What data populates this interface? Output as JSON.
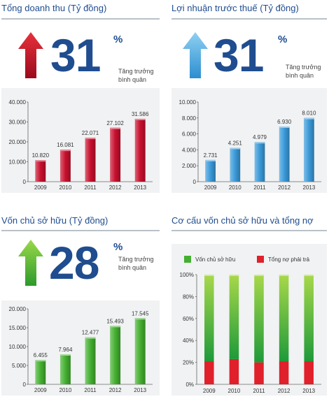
{
  "panels": [
    {
      "id": "revenue",
      "title": "Tổng doanh thu (Tỷ đồng)",
      "growth": "31",
      "pct_sign": "%",
      "growth_label": [
        "Tăng trưởng",
        "bình quân"
      ],
      "arrow_color": "#c8102e"
    },
    {
      "id": "profit",
      "title": "Lợi nhuận trước thuế (Tỷ đồng)",
      "growth": "31",
      "pct_sign": "%",
      "growth_label": [
        "Tăng trưởng",
        "bình quân"
      ],
      "arrow_color": "#4aa8e0"
    },
    {
      "id": "equity",
      "title": "Vốn chủ sở hữu (Tỷ đồng)",
      "growth": "28",
      "pct_sign": "%",
      "growth_label": [
        "Tăng trưởng",
        "bình quân"
      ],
      "arrow_color": "#5cb030"
    },
    {
      "id": "structure",
      "title": "Cơ cấu vốn chủ sở hữu và tổng nợ"
    }
  ],
  "chart_data": [
    {
      "id": "revenue",
      "type": "bar",
      "categories": [
        "2009",
        "2010",
        "2011",
        "2012",
        "2013"
      ],
      "values": [
        10820,
        16081,
        22071,
        27102,
        31586
      ],
      "value_labels": [
        "10.820",
        "16.081",
        "22.071",
        "27.102",
        "31.586"
      ],
      "ylim": [
        0,
        40000
      ],
      "yticks": [
        0,
        10000,
        20000,
        30000,
        40000
      ],
      "ytick_labels": [
        "0",
        "10.000",
        "20.000",
        "30.000",
        "40.000"
      ],
      "color": "#c8102e"
    },
    {
      "id": "profit",
      "type": "bar",
      "categories": [
        "2009",
        "2010",
        "2011",
        "2012",
        "2013"
      ],
      "values": [
        2731,
        4251,
        4979,
        6930,
        8010
      ],
      "value_labels": [
        "2.731",
        "4.251",
        "4.979",
        "6.930",
        "8.010"
      ],
      "ylim": [
        0,
        10000
      ],
      "yticks": [
        0,
        2000,
        4000,
        6000,
        8000,
        10000
      ],
      "ytick_labels": [
        "0",
        "2.000",
        "4.000",
        "6.000",
        "8.000",
        "10.000"
      ],
      "color": "#3a9ad9"
    },
    {
      "id": "equity",
      "type": "bar",
      "categories": [
        "2009",
        "2010",
        "2011",
        "2012",
        "2013"
      ],
      "values": [
        6455,
        7964,
        12477,
        15493,
        17545
      ],
      "value_labels": [
        "6.455",
        "7.964",
        "12.477",
        "15.493",
        "17.545"
      ],
      "ylim": [
        0,
        20000
      ],
      "yticks": [
        0,
        5000,
        10000,
        15000,
        20000
      ],
      "ytick_labels": [
        "0",
        "5.000",
        "10.000",
        "15.000",
        "20.000"
      ],
      "color": "#44b030"
    },
    {
      "id": "structure",
      "type": "bar",
      "stacked": true,
      "percent": true,
      "categories": [
        "2009",
        "2010",
        "2011",
        "2012",
        "2013"
      ],
      "series": [
        {
          "name": "Tổng nợ phải trả",
          "values": [
            21,
            23,
            20,
            21,
            21
          ],
          "color": "#e0202a"
        },
        {
          "name": "Vốn chủ sở hữu",
          "values": [
            79,
            77,
            80,
            79,
            79
          ],
          "color": "#44b030"
        }
      ],
      "legend": [
        "Vốn chủ sở hữu",
        "Tổng nợ phải trả"
      ],
      "ylim": [
        0,
        100
      ],
      "yticks": [
        0,
        20,
        40,
        60,
        80,
        100
      ],
      "ytick_labels": [
        "0%",
        "20%",
        "40%",
        "60%",
        "80%",
        "100%"
      ],
      "legend_position": "top"
    }
  ]
}
